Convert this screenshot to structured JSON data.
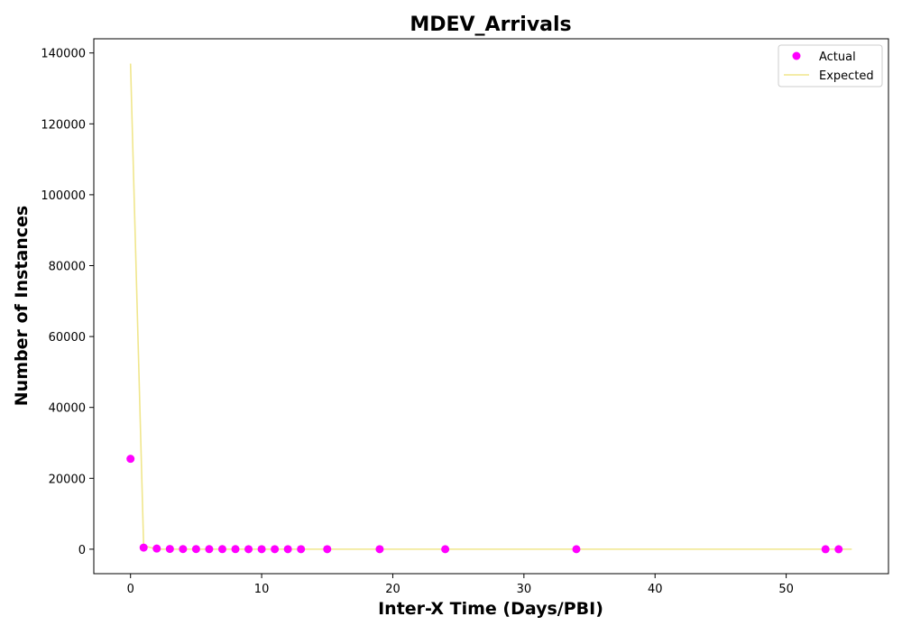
{
  "chart_data": {
    "type": "scatter",
    "title": "MDEV_Arrivals",
    "xlabel": "Inter-X Time (Days/PBI)",
    "ylabel": "Number of Instances",
    "xlim": [
      -2.8,
      57.8
    ],
    "ylim": [
      -6900,
      144000
    ],
    "xticks": [
      0,
      10,
      20,
      30,
      40,
      50
    ],
    "yticks": [
      0,
      20000,
      40000,
      60000,
      80000,
      100000,
      120000,
      140000
    ],
    "legend": {
      "position": "top-right",
      "entries": [
        "Actual",
        "Expected"
      ]
    },
    "grid": false,
    "series": [
      {
        "name": "Actual",
        "kind": "scatter",
        "color": "#ff00ff",
        "x": [
          0,
          1,
          2,
          3,
          4,
          5,
          6,
          7,
          8,
          9,
          10,
          11,
          12,
          13,
          15,
          19,
          24,
          34,
          53,
          54
        ],
        "y": [
          25500,
          450,
          180,
          80,
          50,
          40,
          30,
          25,
          20,
          15,
          12,
          10,
          8,
          6,
          5,
          4,
          3,
          2,
          1,
          1
        ]
      },
      {
        "name": "Expected",
        "kind": "line",
        "color": "#f0e68c",
        "x": [
          0,
          1,
          2,
          3,
          4,
          5,
          6,
          7,
          8,
          9,
          10,
          11,
          12,
          13,
          14,
          15,
          20,
          25,
          30,
          35,
          40,
          45,
          50,
          55
        ],
        "y": [
          137000,
          1000,
          10,
          0,
          0,
          0,
          0,
          0,
          0,
          0,
          0,
          0,
          0,
          0,
          0,
          0,
          0,
          0,
          0,
          0,
          0,
          0,
          0,
          0
        ]
      }
    ]
  }
}
